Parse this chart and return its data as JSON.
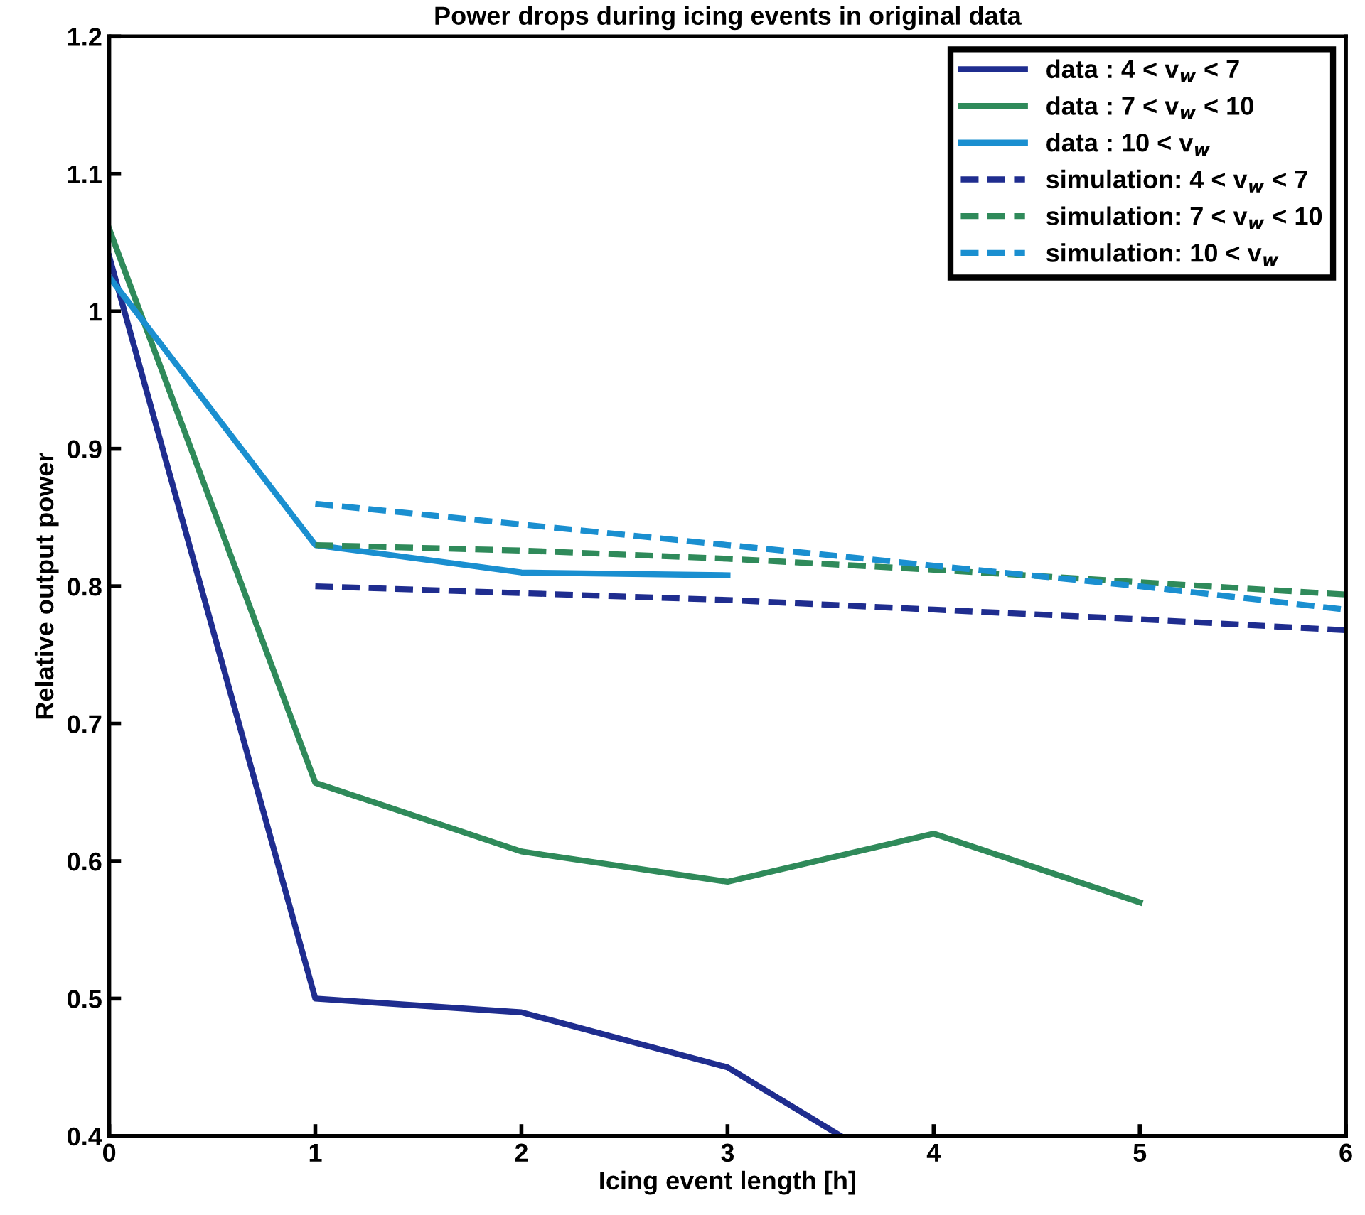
{
  "chart_data": {
    "type": "line",
    "title": "Power drops during icing events in original data",
    "xlabel": "Icing event length [h]",
    "ylabel": "Relative output power",
    "xlim": [
      0,
      6
    ],
    "ylim": [
      0.4,
      1.2
    ],
    "xticks": [
      0,
      1,
      2,
      3,
      4,
      5,
      6
    ],
    "yticks": [
      0.4,
      0.5,
      0.6,
      0.7,
      0.8,
      0.9,
      1,
      1.1,
      1.2
    ],
    "grid": false,
    "legend": "top right",
    "marker": "none",
    "series": [
      {
        "name": "data : 4 < v$_{w}$ < 7",
        "color": "#1f2d8f",
        "line_style": "solid",
        "x": [
          0,
          1,
          2,
          3,
          3.55
        ],
        "values": [
          1.04,
          0.5,
          0.49,
          0.45,
          0.4
        ]
      },
      {
        "name": "data : 7 < v$_{w}$ < 10",
        "color": "#2f8a5a",
        "line_style": "solid",
        "x": [
          0,
          1,
          2,
          3,
          4,
          5
        ],
        "values": [
          1.06,
          0.657,
          0.607,
          0.585,
          0.62,
          0.57
        ]
      },
      {
        "name": "data : 10 < v$_{w}$",
        "color": "#1a8fd0",
        "line_style": "solid",
        "x": [
          0,
          1,
          2,
          3
        ],
        "values": [
          1.025,
          0.83,
          0.81,
          0.808
        ]
      },
      {
        "name": "simulation: 4 < v$_{w}$ < 7",
        "color": "#1f2d8f",
        "line_style": "dashed",
        "x": [
          1,
          2,
          3,
          4,
          5,
          6
        ],
        "values": [
          0.8,
          0.795,
          0.79,
          0.783,
          0.776,
          0.768
        ]
      },
      {
        "name": "simulation: 7 < v$_{w}$ < 10",
        "color": "#2f8a5a",
        "line_style": "dashed",
        "x": [
          1,
          2,
          3,
          4,
          5,
          6
        ],
        "values": [
          0.83,
          0.826,
          0.82,
          0.812,
          0.803,
          0.794
        ]
      },
      {
        "name": "simulation: 10 < v$_{w}$",
        "color": "#1a8fd0",
        "line_style": "dashed",
        "x": [
          1,
          2,
          3,
          4,
          5,
          6
        ],
        "values": [
          0.86,
          0.845,
          0.83,
          0.815,
          0.8,
          0.783
        ]
      }
    ]
  }
}
